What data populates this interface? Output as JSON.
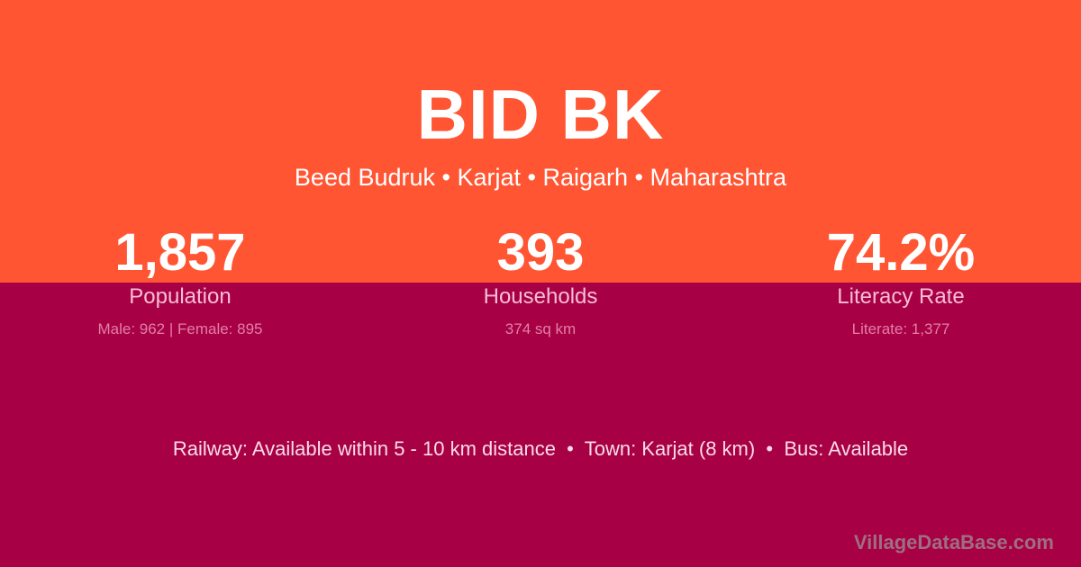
{
  "title": "BID BK",
  "subtitle": "Beed Budruk • Karjat • Raigarh • Maharashtra",
  "stats": [
    {
      "value": "1,857",
      "label": "Population",
      "detail": "Male: 962 | Female: 895"
    },
    {
      "value": "393",
      "label": "Households",
      "detail": "374 sq km"
    },
    {
      "value": "74.2%",
      "label": "Literacy Rate",
      "detail": "Literate: 1,377"
    }
  ],
  "info": "Railway: Available within 5 - 10 km distance  •  Town: Karjat (8 km)  •  Bus: Available",
  "brand": "VillageDataBase.com",
  "colors": {
    "top": "#FF5533",
    "bottom": "#A80044"
  }
}
